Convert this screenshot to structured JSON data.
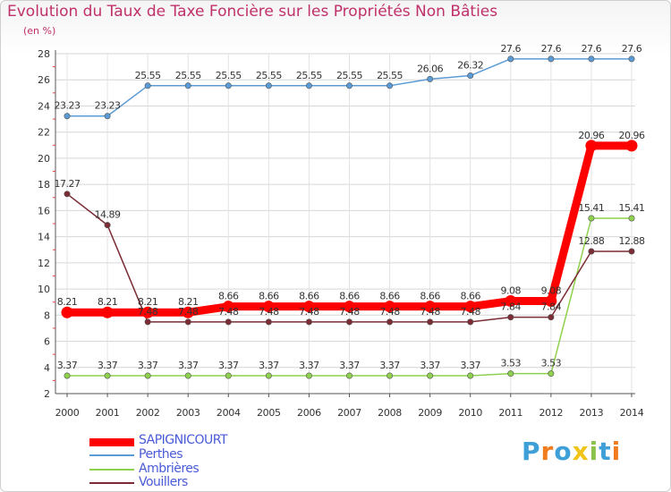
{
  "header": {
    "title": "Evolution du Taux de Taxe Foncière sur les Propriétés Non Bâties",
    "unit": "(en %)"
  },
  "chart_data": {
    "type": "line",
    "x": [
      "2000",
      "2001",
      "2002",
      "2003",
      "2004",
      "2005",
      "2006",
      "2007",
      "2008",
      "2009",
      "2010",
      "2011",
      "2012",
      "2013",
      "2014"
    ],
    "ylim": [
      2,
      28
    ],
    "yticks": [
      "2",
      "4",
      "6",
      "8",
      "10",
      "12",
      "14",
      "16",
      "18",
      "20",
      "22",
      "24",
      "26",
      "28"
    ],
    "series": [
      {
        "name": "SAPIGNICOURT",
        "color": "#ff0000",
        "values": [
          8.21,
          8.21,
          8.21,
          8.21,
          8.66,
          8.66,
          8.66,
          8.66,
          8.66,
          8.66,
          8.66,
          9.08,
          9.08,
          20.96,
          20.96
        ],
        "labels": [
          "8.21",
          "8.21",
          "8.21",
          "8.21",
          "8.66",
          "8.66",
          "8.66",
          "8.66",
          "8.66",
          "8.66",
          "8.66",
          "9.08",
          "9.08",
          "20.96",
          "20.96"
        ]
      },
      {
        "name": "Perthes",
        "color": "#5b9bd5",
        "values": [
          23.23,
          23.23,
          25.55,
          25.55,
          25.55,
          25.55,
          25.55,
          25.55,
          25.55,
          26.06,
          26.32,
          27.6,
          27.6,
          27.6,
          27.6
        ],
        "labels": [
          "23.23",
          "23.23",
          "25.55",
          "25.55",
          "25.55",
          "25.55",
          "25.55",
          "25.55",
          "25.55",
          "26.06",
          "26.32",
          "27.6",
          "27.6",
          "27.6",
          "27.6"
        ]
      },
      {
        "name": "Ambrières",
        "color": "#8fd14f",
        "values": [
          3.37,
          3.37,
          3.37,
          3.37,
          3.37,
          3.37,
          3.37,
          3.37,
          3.37,
          3.37,
          3.37,
          3.53,
          3.53,
          15.41,
          15.41
        ],
        "labels": [
          "3.37",
          "3.37",
          "3.37",
          "3.37",
          "3.37",
          "3.37",
          "3.37",
          "3.37",
          "3.37",
          "3.37",
          "3.37",
          "3.53",
          "3.53",
          "15.41",
          "15.41"
        ]
      },
      {
        "name": "Vouillers",
        "color": "#7b2c34",
        "values": [
          17.27,
          14.89,
          7.48,
          7.48,
          7.48,
          7.48,
          7.48,
          7.48,
          7.48,
          7.48,
          7.48,
          7.84,
          7.84,
          12.88,
          12.88
        ],
        "labels": [
          "17.27",
          "14.89",
          "7.48",
          "7.48",
          "7.48",
          "7.48",
          "7.48",
          "7.48",
          "7.48",
          "7.48",
          "7.48",
          "7.84",
          "7.84",
          "12.88",
          "12.88"
        ]
      }
    ]
  },
  "legend": {
    "items": [
      {
        "label": "SAPIGNICOURT",
        "color": "#ff0000",
        "text_color": "#4a5bd8"
      },
      {
        "label": "Perthes",
        "color": "#5b9bd5",
        "text_color": "#4a5bd8"
      },
      {
        "label": "Ambrières",
        "color": "#8fd14f",
        "text_color": "#4a5bd8"
      },
      {
        "label": "Vouillers",
        "color": "#7b2c34",
        "text_color": "#4a5bd8"
      }
    ]
  },
  "logo": {
    "letters": [
      "P",
      "r",
      "o",
      "x",
      "i",
      "t",
      "i"
    ],
    "colors": [
      "#3fa0d8",
      "#f07c1e",
      "#3fa0d8",
      "#f0c419",
      "#8bc34a",
      "#3fa0d8",
      "#f07c1e"
    ]
  }
}
